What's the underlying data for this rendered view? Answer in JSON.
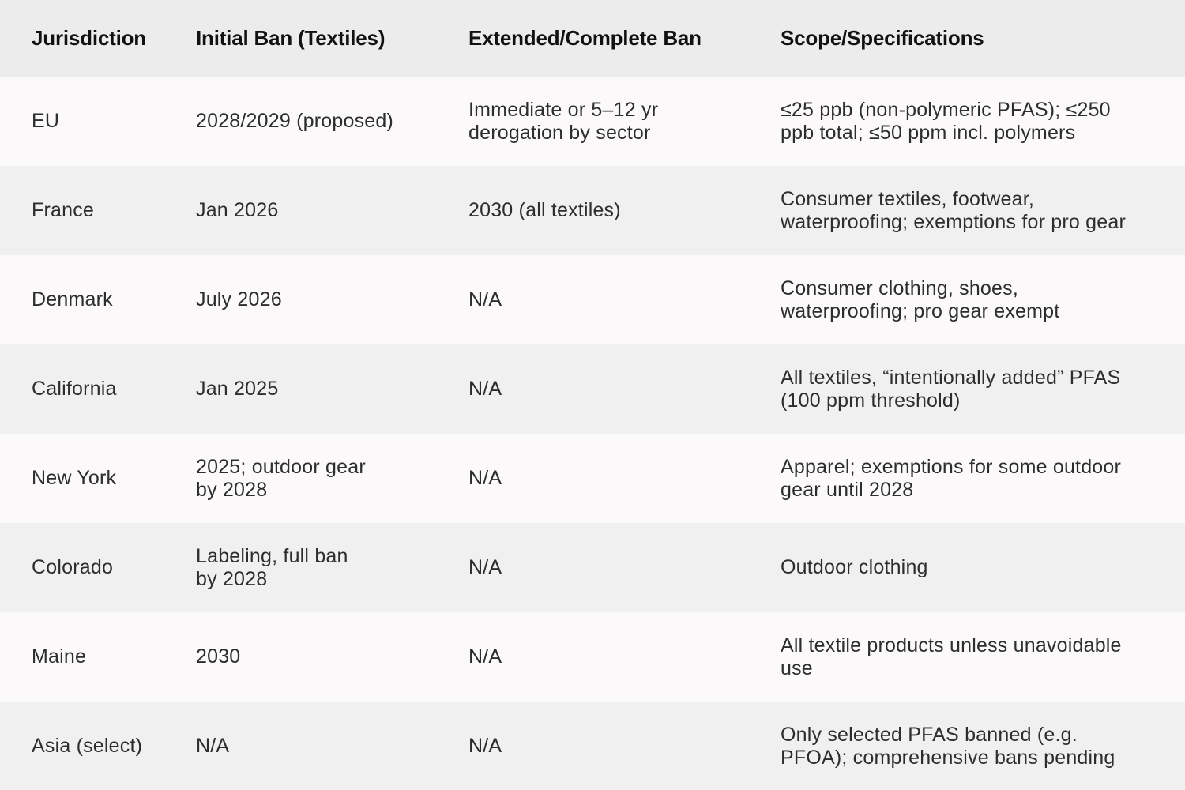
{
  "chart_data": {
    "type": "table",
    "columns": [
      "Jurisdiction",
      "Initial Ban (Textiles)",
      "Extended/Complete Ban",
      "Scope/Specifications"
    ],
    "rows": [
      [
        "EU",
        "2028/2029 (proposed)",
        "Immediate or 5–12 yr\nderogation by sector",
        "≤25 ppb (non-polymeric PFAS); ≤250\nppb total; ≤50 ppm incl. polymers"
      ],
      [
        "France",
        "Jan 2026",
        "2030 (all textiles)",
        "Consumer textiles, footwear,\nwaterproofing; exemptions for pro gear"
      ],
      [
        "Denmark",
        "July 2026",
        "N/A",
        "Consumer clothing, shoes,\nwaterproofing; pro gear exempt"
      ],
      [
        "California",
        "Jan 2025",
        "N/A",
        "All textiles, “intentionally added” PFAS\n(100 ppm threshold)"
      ],
      [
        "New York",
        "2025; outdoor gear\nby 2028",
        "N/A",
        "Apparel; exemptions for some outdoor\ngear until 2028"
      ],
      [
        "Colorado",
        "Labeling, full ban\nby 2028",
        "N/A",
        "Outdoor clothing"
      ],
      [
        "Maine",
        "2030",
        "N/A",
        "All textile products unless unavoidable\nuse"
      ],
      [
        "Asia (select)",
        "N/A",
        "N/A",
        "Only selected PFAS banned (e.g.\nPFOA); comprehensive bans pending"
      ]
    ],
    "layout": {
      "header_background": "#ececec",
      "row_background_light": "#fbf9fa",
      "row_background_gray": "#f1f0f0",
      "header_text_color": "#121212",
      "body_text_color": "#2d2d2d",
      "grid": false
    }
  }
}
